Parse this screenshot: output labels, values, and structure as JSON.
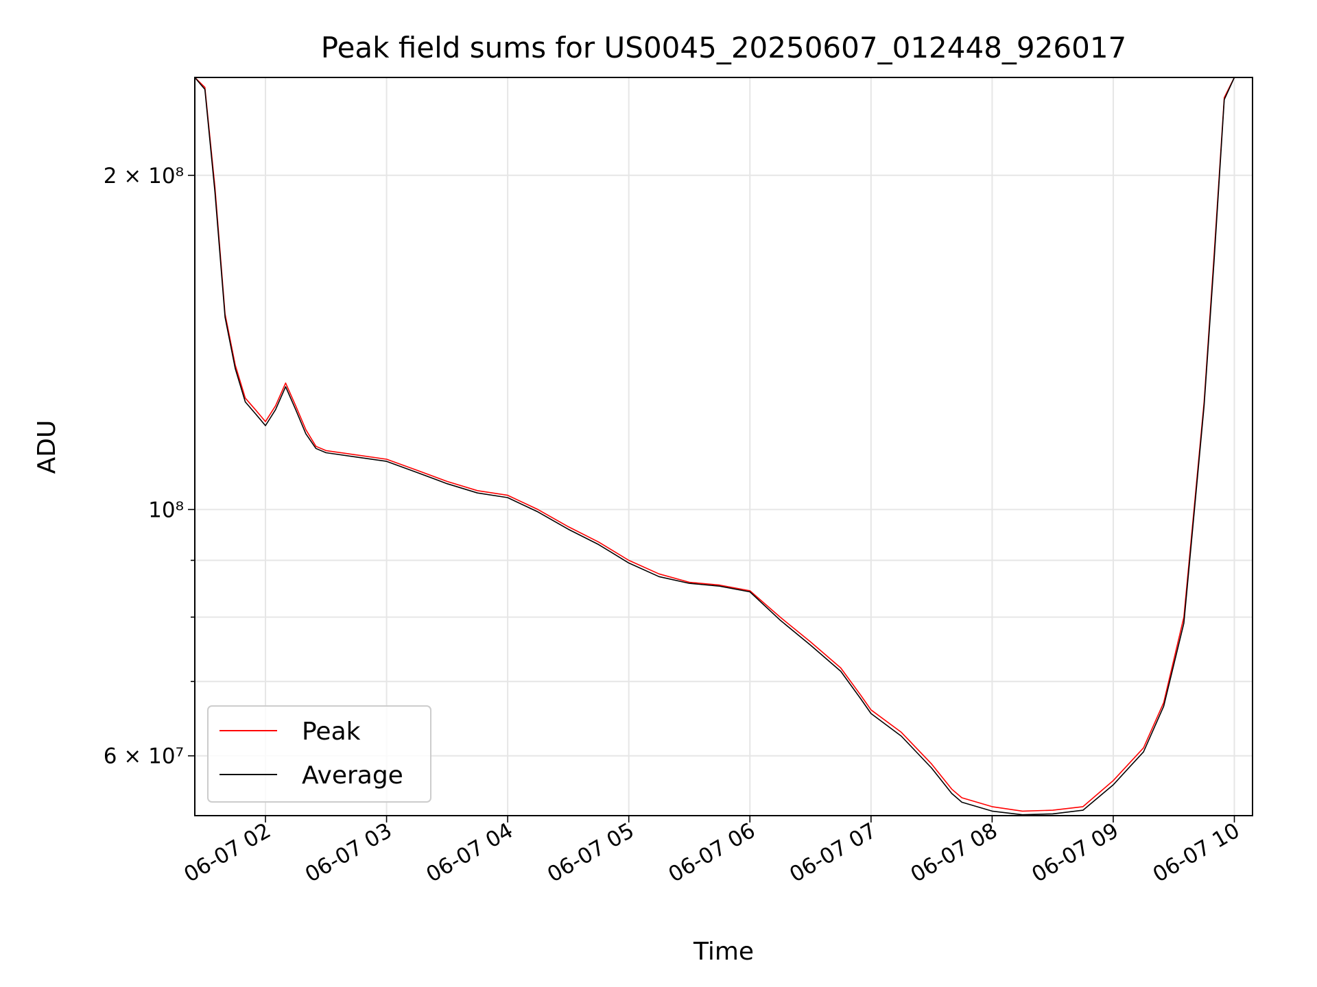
{
  "chart_data": {
    "type": "line",
    "title": "Peak field sums for US0045_20250607_012448_926017",
    "xlabel": "Time",
    "ylabel": "ADU",
    "y_scale": "log",
    "ylim": [
      53000000,
      245000000
    ],
    "xlim": [
      "2025-06-07 01:25",
      "2025-06-07 10:09"
    ],
    "grid": true,
    "legend_position": "lower-left",
    "x_ticks": [
      "06-07 02",
      "06-07 03",
      "06-07 04",
      "06-07 05",
      "06-07 06",
      "06-07 07",
      "06-07 08",
      "06-07 09",
      "06-07 10"
    ],
    "x_tick_times": [
      "2025-06-07 02:00",
      "2025-06-07 03:00",
      "2025-06-07 04:00",
      "2025-06-07 05:00",
      "2025-06-07 06:00",
      "2025-06-07 07:00",
      "2025-06-07 08:00",
      "2025-06-07 09:00",
      "2025-06-07 10:00"
    ],
    "y_ticks_major": [
      {
        "value": 200000000,
        "label": "2 × 10⁸"
      },
      {
        "value": 100000000,
        "label": "10⁸"
      },
      {
        "value": 60000000,
        "label": "6 × 10⁷"
      }
    ],
    "y_ticks_minor": [
      70000000,
      80000000,
      90000000
    ],
    "x": [
      "2025-06-07 01:25",
      "2025-06-07 01:30",
      "2025-06-07 01:35",
      "2025-06-07 01:40",
      "2025-06-07 01:45",
      "2025-06-07 01:50",
      "2025-06-07 01:55",
      "2025-06-07 02:00",
      "2025-06-07 02:05",
      "2025-06-07 02:10",
      "2025-06-07 02:15",
      "2025-06-07 02:20",
      "2025-06-07 02:25",
      "2025-06-07 02:30",
      "2025-06-07 02:45",
      "2025-06-07 03:00",
      "2025-06-07 03:15",
      "2025-06-07 03:30",
      "2025-06-07 03:45",
      "2025-06-07 04:00",
      "2025-06-07 04:15",
      "2025-06-07 04:30",
      "2025-06-07 04:45",
      "2025-06-07 05:00",
      "2025-06-07 05:15",
      "2025-06-07 05:30",
      "2025-06-07 05:45",
      "2025-06-07 06:00",
      "2025-06-07 06:15",
      "2025-06-07 06:30",
      "2025-06-07 06:45",
      "2025-06-07 06:55",
      "2025-06-07 07:00",
      "2025-06-07 07:15",
      "2025-06-07 07:30",
      "2025-06-07 07:40",
      "2025-06-07 07:45",
      "2025-06-07 08:00",
      "2025-06-07 08:15",
      "2025-06-07 08:30",
      "2025-06-07 08:45",
      "2025-06-07 09:00",
      "2025-06-07 09:15",
      "2025-06-07 09:25",
      "2025-06-07 09:35",
      "2025-06-07 09:40",
      "2025-06-07 09:45",
      "2025-06-07 09:50",
      "2025-06-07 09:55",
      "2025-06-07 10:00",
      "2025-06-07 10:09"
    ],
    "series": [
      {
        "name": "Peak",
        "color": "#ff0000",
        "values": [
          245000000,
          240000000,
          195000000,
          150000000,
          135000000,
          126000000,
          123000000,
          120000000,
          124000000,
          130000000,
          124000000,
          118000000,
          114000000,
          113000000,
          112000000,
          111000000,
          108500000,
          106000000,
          104000000,
          103000000,
          100000000,
          96500000,
          93500000,
          90000000,
          87500000,
          86000000,
          85500000,
          84500000,
          80000000,
          76000000,
          72000000,
          68000000,
          66000000,
          63000000,
          59000000,
          56000000,
          55000000,
          54000000,
          53500000,
          53600000,
          54000000,
          57000000,
          61000000,
          67000000,
          80000000,
          100000000,
          125000000,
          170000000,
          235000000,
          245000000,
          245000000
        ]
      },
      {
        "name": "Average",
        "color": "#000000",
        "values": [
          245000000,
          239000000,
          193000000,
          149000000,
          134000000,
          125000000,
          122000000,
          119000000,
          123000000,
          129000000,
          123000000,
          117000000,
          113500000,
          112500000,
          111500000,
          110500000,
          108000000,
          105500000,
          103500000,
          102500000,
          99500000,
          96000000,
          93000000,
          89500000,
          87000000,
          85800000,
          85300000,
          84300000,
          79500000,
          75500000,
          71500000,
          67500000,
          65500000,
          62500000,
          58500000,
          55500000,
          54500000,
          53500000,
          53100000,
          53200000,
          53600000,
          56500000,
          60500000,
          66500000,
          79000000,
          99000000,
          124000000,
          168000000,
          234000000,
          245000000,
          245000000
        ]
      }
    ]
  }
}
